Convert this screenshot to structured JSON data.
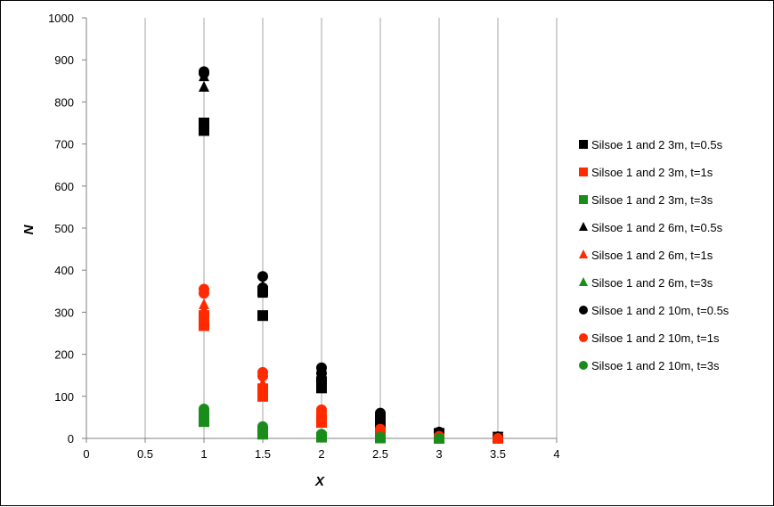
{
  "chart_data": {
    "type": "scatter",
    "title": "",
    "xlabel": "X",
    "ylabel": "N",
    "xlim": [
      0,
      4
    ],
    "ylim": [
      0,
      1000
    ],
    "xticks": [
      "0",
      "0.5",
      "1",
      "1.5",
      "2",
      "2.5",
      "3",
      "3.5",
      "4"
    ],
    "yticks": [
      "0",
      "100",
      "200",
      "300",
      "400",
      "500",
      "600",
      "700",
      "800",
      "900",
      "1000"
    ],
    "grid": "vertical",
    "legend_position": "right",
    "colors": {
      "t05": "#000000",
      "t1": "#ff2a00",
      "t3": "#1a8c1a"
    },
    "series": [
      {
        "name": "Silsoe 1 and 2 3m, t=0.5s",
        "marker": "square",
        "color": "#000000",
        "points": [
          [
            1,
            750
          ],
          [
            1,
            740
          ],
          [
            1,
            732
          ],
          [
            1.5,
            350
          ],
          [
            1.5,
            292
          ],
          [
            2,
            135
          ],
          [
            2,
            120
          ],
          [
            2.5,
            45
          ],
          [
            2.5,
            35
          ],
          [
            3,
            12
          ],
          [
            3,
            8
          ],
          [
            3.5,
            3
          ],
          [
            3.5,
            1
          ]
        ]
      },
      {
        "name": "Silsoe 1 and 2 3m, t=1s",
        "marker": "square",
        "color": "#ff2a00",
        "points": [
          [
            1,
            292
          ],
          [
            1,
            280
          ],
          [
            1,
            268
          ],
          [
            1.5,
            118
          ],
          [
            1.5,
            100
          ],
          [
            2,
            45
          ],
          [
            2,
            38
          ],
          [
            2.5,
            10
          ],
          [
            3,
            2
          ],
          [
            3.5,
            0
          ]
        ]
      },
      {
        "name": "Silsoe 1 and 2 3m, t=3s",
        "marker": "square",
        "color": "#1a8c1a",
        "points": [
          [
            1,
            50
          ],
          [
            1,
            40
          ],
          [
            1.5,
            15
          ],
          [
            1.5,
            10
          ],
          [
            2,
            3
          ],
          [
            2.5,
            1
          ],
          [
            3,
            0
          ]
        ]
      },
      {
        "name": "Silsoe 1 and 2 6m, t=0.5s",
        "marker": "triangle",
        "color": "#000000",
        "points": [
          [
            1,
            860
          ],
          [
            1,
            835
          ],
          [
            1.5,
            362
          ],
          [
            1.5,
            345
          ],
          [
            2,
            150
          ],
          [
            2,
            140
          ],
          [
            2.5,
            55
          ],
          [
            2.5,
            48
          ],
          [
            3,
            10
          ],
          [
            3.5,
            2
          ]
        ]
      },
      {
        "name": "Silsoe 1 and 2 6m, t=1s",
        "marker": "triangle",
        "color": "#ff2a00",
        "points": [
          [
            1,
            318
          ],
          [
            1,
            305
          ],
          [
            1.5,
            130
          ],
          [
            1.5,
            120
          ],
          [
            2,
            55
          ],
          [
            2.5,
            15
          ],
          [
            3,
            3
          ],
          [
            3.5,
            0
          ]
        ]
      },
      {
        "name": "Silsoe 1 and 2 6m, t=3s",
        "marker": "triangle",
        "color": "#1a8c1a",
        "points": [
          [
            1,
            62
          ],
          [
            1,
            55
          ],
          [
            1.5,
            22
          ],
          [
            2,
            6
          ],
          [
            2.5,
            1
          ],
          [
            3,
            0
          ]
        ]
      },
      {
        "name": "Silsoe 1 and 2 10m, t=0.5s",
        "marker": "circle",
        "color": "#000000",
        "points": [
          [
            1,
            872
          ],
          [
            1,
            868
          ],
          [
            1.5,
            385
          ],
          [
            1.5,
            358
          ],
          [
            2,
            168
          ],
          [
            2,
            155
          ],
          [
            2.5,
            60
          ],
          [
            2.5,
            52
          ],
          [
            3,
            15
          ],
          [
            3.5,
            4
          ]
        ]
      },
      {
        "name": "Silsoe 1 and 2 10m, t=1s",
        "marker": "circle",
        "color": "#ff2a00",
        "points": [
          [
            1,
            355
          ],
          [
            1,
            345
          ],
          [
            1.5,
            157
          ],
          [
            1.5,
            148
          ],
          [
            2,
            68
          ],
          [
            2,
            62
          ],
          [
            2.5,
            22
          ],
          [
            3,
            5
          ],
          [
            3.5,
            0
          ]
        ]
      },
      {
        "name": "Silsoe 1 and 2 10m, t=3s",
        "marker": "circle",
        "color": "#1a8c1a",
        "points": [
          [
            1,
            70
          ],
          [
            1,
            65
          ],
          [
            1.5,
            28
          ],
          [
            1.5,
            25
          ],
          [
            2,
            10
          ],
          [
            2.5,
            3
          ],
          [
            3,
            0
          ]
        ]
      }
    ]
  }
}
